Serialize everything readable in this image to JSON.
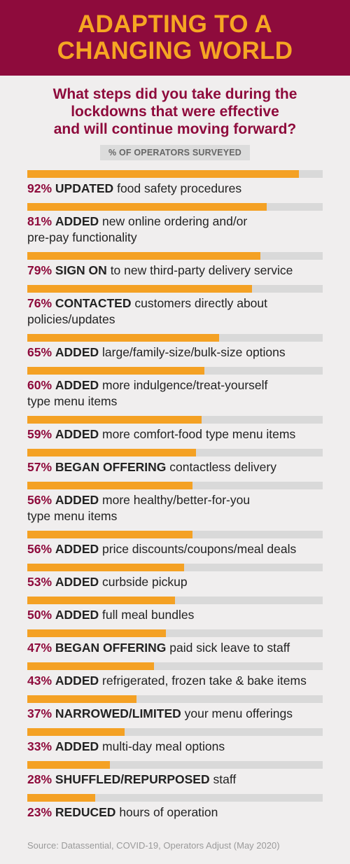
{
  "header": {
    "title_lines": [
      "ADAPTING TO A",
      "CHANGING WORLD"
    ]
  },
  "question_lines": [
    "What steps did you take during the",
    "lockdowns that were effective",
    "and will continue moving forward?"
  ],
  "subtitle": "% OF OPERATORS SURVEYED",
  "source": "Source: Datassential, COVID-19, Operators Adjust (May 2020)",
  "colors": {
    "header_bg": "#8e0b3c",
    "title": "#f6a623",
    "bar": "#f4a124",
    "track": "#d9d9d9",
    "accent": "#8e0b3c"
  },
  "chart_data": {
    "type": "bar",
    "orientation": "horizontal",
    "title": "% OF OPERATORS SURVEYED",
    "xlim": [
      0,
      100
    ],
    "grid": false,
    "items": [
      {
        "value": 92,
        "pct_label": "92%",
        "verb": "UPDATED",
        "lines": [
          "food safety procedures"
        ]
      },
      {
        "value": 81,
        "pct_label": "81%",
        "verb": "ADDED",
        "lines": [
          "new online ordering and/or",
          "pre-pay functionality"
        ]
      },
      {
        "value": 79,
        "pct_label": "79%",
        "verb": "SIGN ON",
        "lines": [
          "to new third-party delivery service"
        ]
      },
      {
        "value": 76,
        "pct_label": "76%",
        "verb": "CONTACTED",
        "lines": [
          "customers directly about",
          "policies/updates"
        ]
      },
      {
        "value": 65,
        "pct_label": "65%",
        "verb": "ADDED",
        "lines": [
          "large/family-size/bulk-size options"
        ]
      },
      {
        "value": 60,
        "pct_label": "60%",
        "verb": "ADDED",
        "lines": [
          "more indulgence/treat-yourself",
          "type menu items"
        ]
      },
      {
        "value": 59,
        "pct_label": "59%",
        "verb": "ADDED",
        "lines": [
          "more comfort-food type menu items"
        ]
      },
      {
        "value": 57,
        "pct_label": "57%",
        "verb": "BEGAN OFFERING",
        "lines": [
          "contactless delivery"
        ]
      },
      {
        "value": 56,
        "pct_label": "56%",
        "verb": "ADDED",
        "lines": [
          "more healthy/better-for-you",
          "type menu items"
        ]
      },
      {
        "value": 56,
        "pct_label": "56%",
        "verb": "ADDED",
        "lines": [
          "price discounts/coupons/meal deals"
        ]
      },
      {
        "value": 53,
        "pct_label": "53%",
        "verb": "ADDED",
        "lines": [
          "curbside pickup"
        ]
      },
      {
        "value": 50,
        "pct_label": "50%",
        "verb": "ADDED",
        "lines": [
          "full meal bundles"
        ]
      },
      {
        "value": 47,
        "pct_label": "47%",
        "verb": "BEGAN OFFERING",
        "lines": [
          "paid sick leave to staff"
        ]
      },
      {
        "value": 43,
        "pct_label": "43%",
        "verb": "ADDED",
        "lines": [
          "refrigerated, frozen take & bake items"
        ]
      },
      {
        "value": 37,
        "pct_label": "37%",
        "verb": "NARROWED/LIMITED",
        "lines": [
          "your menu offerings"
        ]
      },
      {
        "value": 33,
        "pct_label": "33%",
        "verb": "ADDED",
        "lines": [
          "multi-day meal options"
        ]
      },
      {
        "value": 28,
        "pct_label": "28%",
        "verb": "SHUFFLED/REPURPOSED",
        "lines": [
          "staff"
        ]
      },
      {
        "value": 23,
        "pct_label": "23%",
        "verb": "REDUCED",
        "lines": [
          "hours of operation"
        ]
      }
    ]
  }
}
